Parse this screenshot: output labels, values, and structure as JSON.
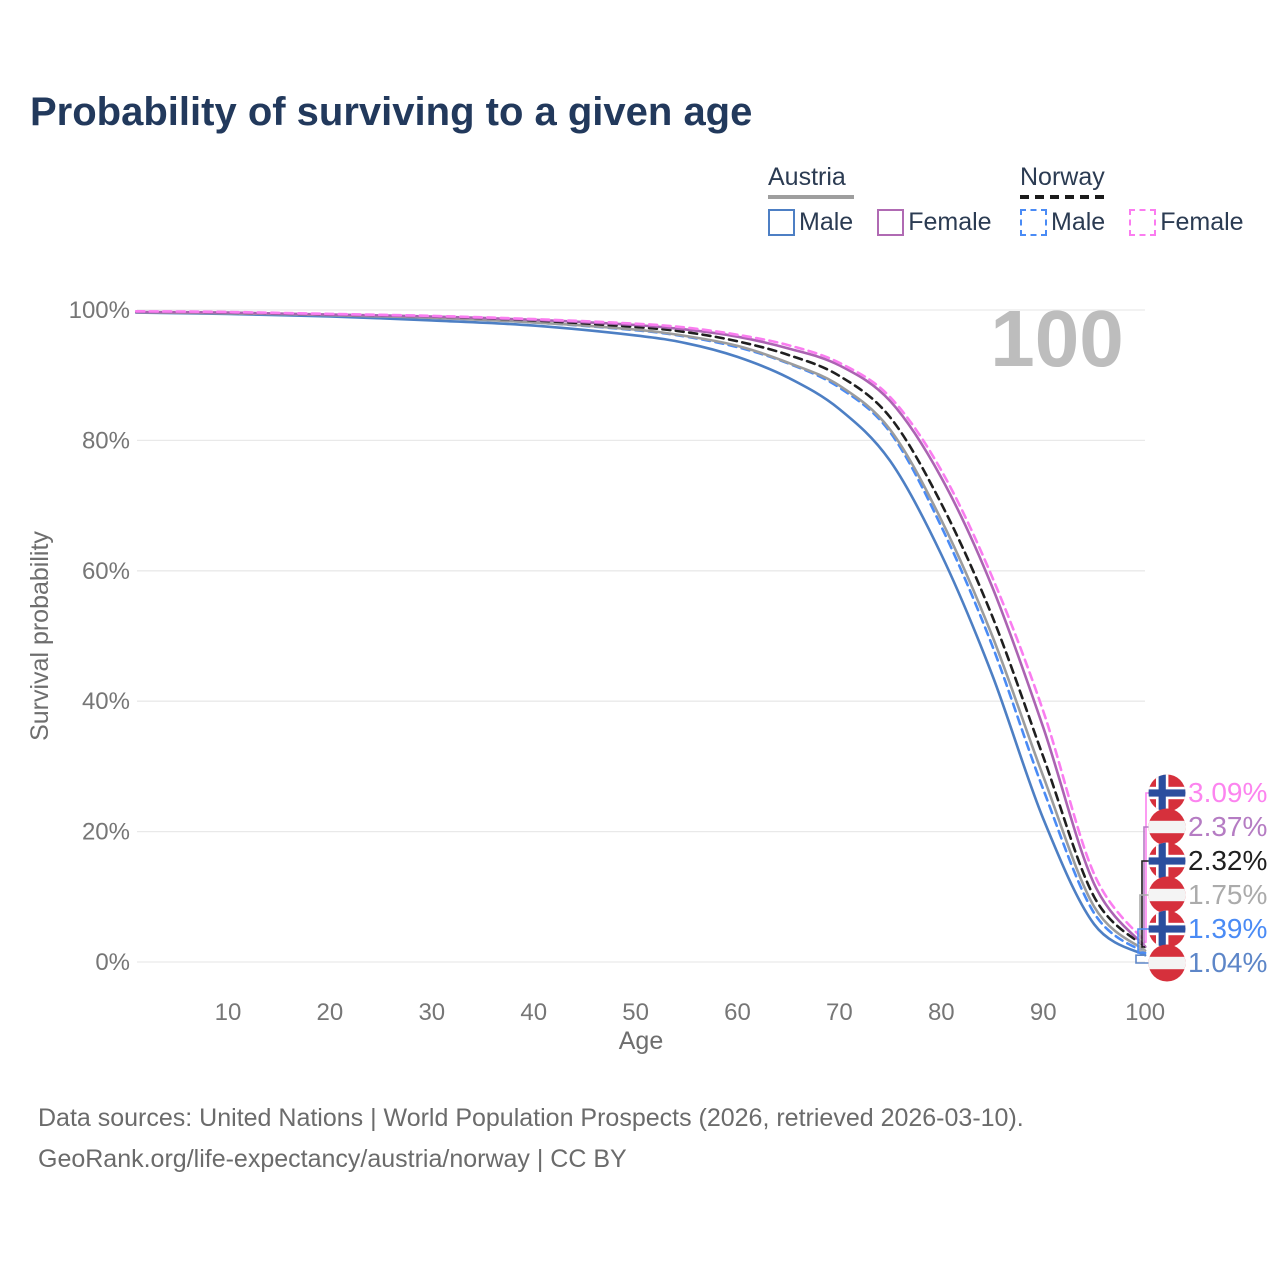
{
  "title": "Probability of surviving to a given age",
  "watermark": "100",
  "legend": {
    "groups": [
      {
        "country": "Austria",
        "style": "solid",
        "underline_color": "#9e9e9e",
        "items": [
          {
            "label": "Male",
            "color": "#4d7fc4"
          },
          {
            "label": "Female",
            "color": "#b06ab3"
          }
        ]
      },
      {
        "country": "Norway",
        "style": "dashed",
        "underline_color": "#1b1b1b",
        "items": [
          {
            "label": "Male",
            "color": "#4a8bf5"
          },
          {
            "label": "Female",
            "color": "#fb7cf0"
          }
        ]
      }
    ]
  },
  "chart_data": {
    "type": "line",
    "title": "Probability of surviving to a given age",
    "xlabel": "Age",
    "ylabel": "Survival probability",
    "xlim": [
      1,
      100
    ],
    "ylim": [
      0,
      100
    ],
    "grid": "horizontal",
    "xticks": [
      {
        "label": "10",
        "value": 10
      },
      {
        "label": "20",
        "value": 20
      },
      {
        "label": "30",
        "value": 30
      },
      {
        "label": "40",
        "value": 40
      },
      {
        "label": "50",
        "value": 50
      },
      {
        "label": "60",
        "value": 60
      },
      {
        "label": "70",
        "value": 70
      },
      {
        "label": "80",
        "value": 80
      },
      {
        "label": "90",
        "value": 90
      },
      {
        "label": "100",
        "value": 100
      }
    ],
    "yticks": [
      {
        "label": "0%",
        "value": 0
      },
      {
        "label": "20%",
        "value": 20
      },
      {
        "label": "40%",
        "value": 40
      },
      {
        "label": "60%",
        "value": 60
      },
      {
        "label": "80%",
        "value": 80
      },
      {
        "label": "100%",
        "value": 100
      }
    ],
    "x": [
      1,
      10,
      20,
      30,
      40,
      50,
      55,
      60,
      65,
      70,
      75,
      80,
      85,
      90,
      95,
      100
    ],
    "series": [
      {
        "name": "Austria Male",
        "country": "Austria",
        "sex": "Male",
        "color": "#4d7fc4",
        "dash": false,
        "flag": "austria",
        "end_label": "1.04%",
        "label_color": "#5d86c8",
        "values": [
          99.6,
          99.4,
          99.0,
          98.4,
          97.6,
          96.1,
          94.9,
          92.8,
          89.6,
          84.8,
          76.8,
          62.5,
          44.0,
          22.0,
          5.8,
          1.04
        ]
      },
      {
        "name": "Norway Male",
        "country": "Norway",
        "sex": "Male",
        "color": "#4a8bf5",
        "dash": true,
        "flag": "norway",
        "end_label": "1.39%",
        "label_color": "#4a8bf5",
        "values": [
          99.7,
          99.5,
          99.2,
          98.8,
          98.1,
          96.9,
          95.9,
          94.3,
          91.8,
          88.1,
          81.2,
          66.8,
          48.5,
          26.5,
          7.5,
          1.39
        ]
      },
      {
        "name": "Austria Both sexes",
        "country": "Austria",
        "sex": "Both",
        "color": "#9c9c9c",
        "dash": false,
        "flag": "austria",
        "end_label": "1.75%",
        "label_color": "#ababab",
        "values": [
          99.65,
          99.5,
          99.2,
          98.8,
          98.1,
          97.0,
          96.0,
          94.5,
          91.9,
          88.4,
          81.6,
          67.8,
          50.0,
          28.5,
          8.5,
          1.75
        ]
      },
      {
        "name": "Norway Both sexes",
        "country": "Norway",
        "sex": "Both",
        "color": "#1f1f1f",
        "dash": true,
        "flag": "norway",
        "end_label": "2.32%",
        "label_color": "#1f1f1f",
        "values": [
          99.75,
          99.6,
          99.3,
          99.0,
          98.4,
          97.4,
          96.6,
          95.2,
          93.1,
          89.9,
          83.5,
          70.3,
          53.0,
          31.5,
          10.0,
          2.32
        ]
      },
      {
        "name": "Austria Female",
        "country": "Austria",
        "sex": "Female",
        "color": "#ab63b2",
        "dash": false,
        "flag": "austria",
        "end_label": "2.37%",
        "label_color": "#b57cc3",
        "values": [
          99.7,
          99.6,
          99.3,
          99.0,
          98.5,
          97.7,
          97.0,
          95.9,
          94.1,
          91.5,
          86.0,
          74.3,
          57.5,
          36.0,
          12.0,
          2.37
        ]
      },
      {
        "name": "Norway Female",
        "country": "Norway",
        "sex": "Female",
        "color": "#fa7df0",
        "dash": true,
        "flag": "norway",
        "end_label": "3.09%",
        "label_color": "#fc84ef",
        "values": [
          99.8,
          99.7,
          99.4,
          99.1,
          98.6,
          97.9,
          97.3,
          96.2,
          94.6,
          91.9,
          86.6,
          75.4,
          59.0,
          38.5,
          13.5,
          3.09
        ]
      }
    ],
    "flag_colors": {
      "norway_red": "#d6303c",
      "norway_blue": "#2b4e9e",
      "norway_white": "#ffffff",
      "austria_red": "#d6303c",
      "austria_white": "#f4f4f4"
    }
  },
  "footer": {
    "line1": "Data sources: United Nations | World Population Prospects (2026, retrieved 2026-03-10).",
    "line2": "GeoRank.org/life-expectancy/austria/norway | CC BY"
  }
}
